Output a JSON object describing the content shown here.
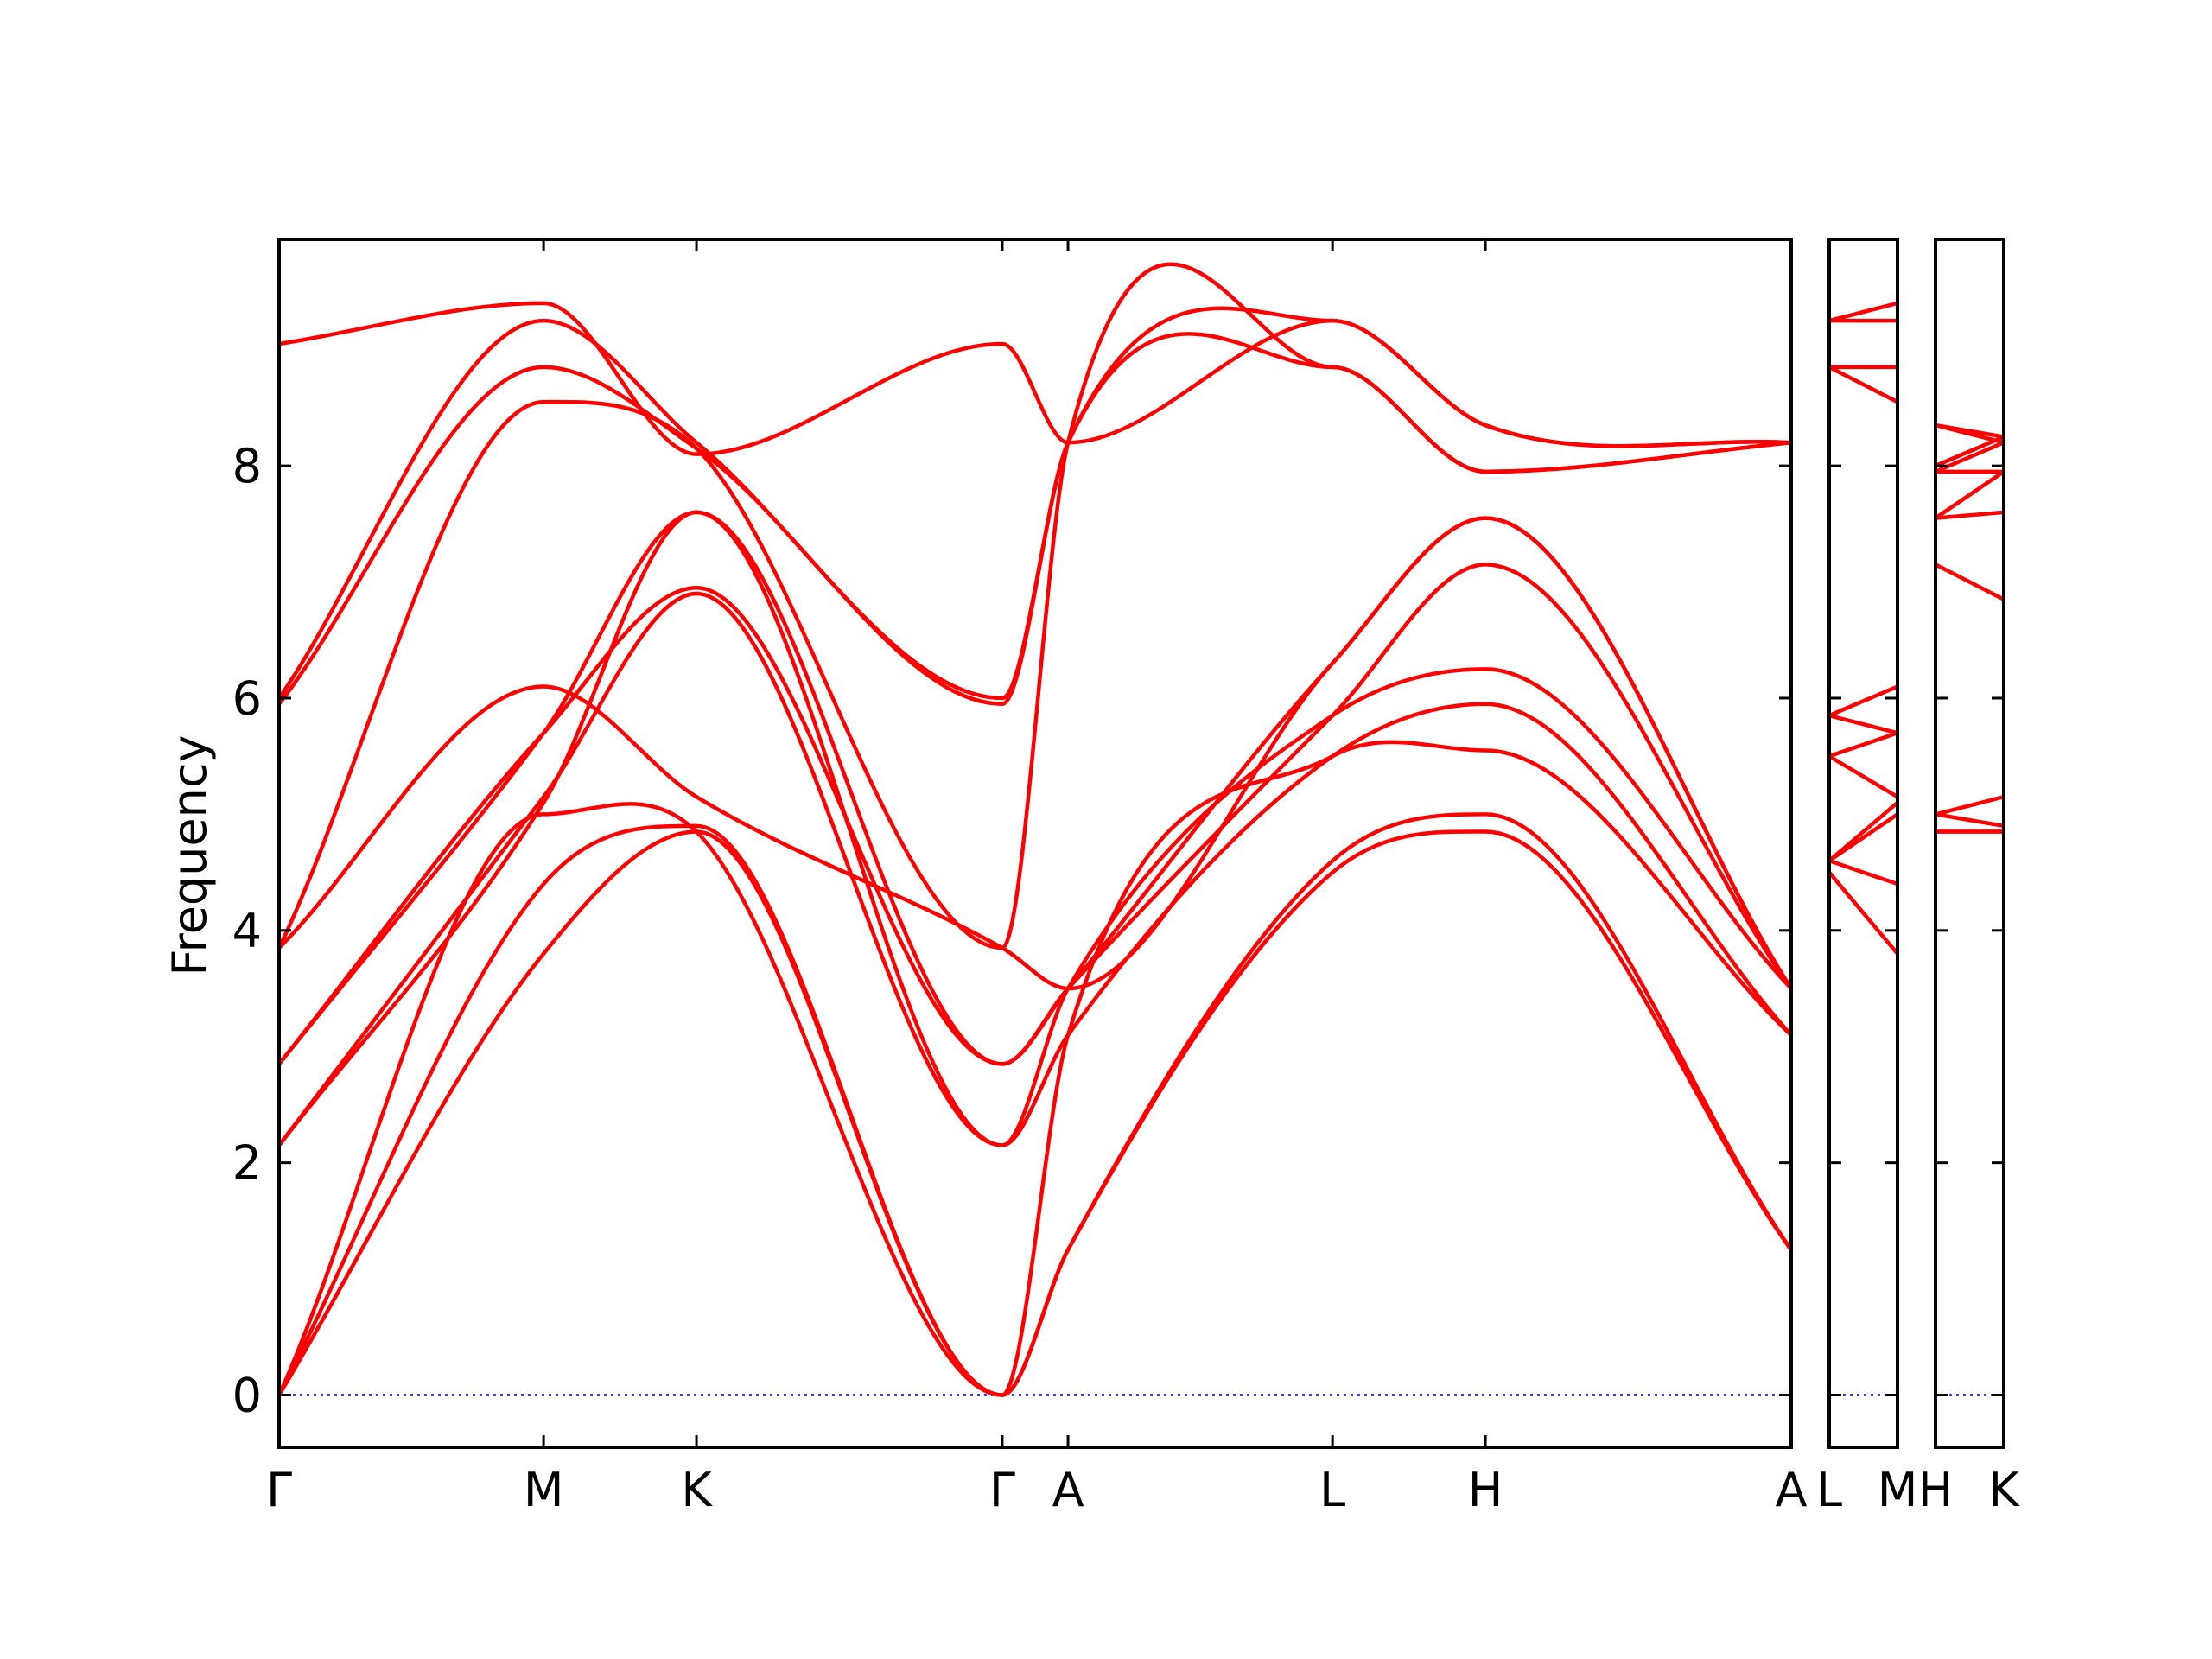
{
  "chart_data": {
    "type": "line",
    "ylabel": "Frequency",
    "ylim": [
      -0.45,
      9.95
    ],
    "yticks": [
      0,
      2,
      4,
      6,
      8
    ],
    "colors": {
      "bands": "#ff0000",
      "zero_line": "#0000cc"
    },
    "panels": [
      {
        "labels": [
          "Γ",
          "M",
          "K",
          "Γ",
          "A",
          "L",
          "H",
          "A"
        ],
        "x": [
          0,
          1.73,
          2.73,
          4.73,
          5.16,
          6.89,
          7.89,
          9.89
        ],
        "bands": [
          [
            0,
            3.8,
            4.85,
            0,
            1.25,
            4.5,
            4.85,
            1.25
          ],
          [
            0,
            4.4,
            4.9,
            0,
            1.25,
            4.6,
            5.0,
            1.25
          ],
          [
            0,
            5.0,
            4.85,
            0,
            3.1,
            5.5,
            5.55,
            3.1
          ],
          [
            2.15,
            5.1,
            7.6,
            2.15,
            3.1,
            5.5,
            5.95,
            3.1
          ],
          [
            2.15,
            5.15,
            6.9,
            2.15,
            3.5,
            5.85,
            6.25,
            3.5
          ],
          [
            2.85,
            5.7,
            6.95,
            2.85,
            3.5,
            5.85,
            7.15,
            3.5
          ],
          [
            2.85,
            5.7,
            7.6,
            2.85,
            3.5,
            6.3,
            7.55,
            3.5
          ],
          [
            3.85,
            6.1,
            5.15,
            3.85,
            3.5,
            6.3,
            7.55,
            3.5
          ],
          [
            3.85,
            8.55,
            8.15,
            3.85,
            8.2,
            8.85,
            7.95,
            8.2
          ],
          [
            5.95,
            8.85,
            8.15,
            5.95,
            8.2,
            8.85,
            7.95,
            8.2
          ],
          [
            6.0,
            9.25,
            8.2,
            6.0,
            8.2,
            9.25,
            8.35,
            8.2
          ],
          [
            9.05,
            9.4,
            8.1,
            9.05,
            8.2,
            9.25,
            8.35,
            8.2
          ]
        ]
      },
      {
        "labels": [
          "L",
          "M"
        ],
        "x": [
          0,
          1
        ],
        "bands": [
          [
            4.5,
            3.8
          ],
          [
            4.6,
            4.4
          ],
          [
            4.6,
            5.0
          ],
          [
            4.6,
            5.1
          ],
          [
            5.5,
            5.15
          ],
          [
            5.5,
            5.7
          ],
          [
            5.85,
            5.7
          ],
          [
            5.85,
            6.1
          ],
          [
            8.85,
            8.55
          ],
          [
            8.85,
            8.85
          ],
          [
            9.25,
            9.25
          ],
          [
            9.25,
            9.4
          ]
        ]
      },
      {
        "labels": [
          "H",
          "K"
        ],
        "x": [
          0,
          1
        ],
        "bands": [
          [
            4.85,
            4.85
          ],
          [
            5.0,
            4.9
          ],
          [
            5.0,
            5.15
          ],
          [
            4.85,
            4.85
          ],
          [
            7.15,
            6.85
          ],
          [
            7.55,
            7.6
          ],
          [
            7.55,
            7.95
          ],
          [
            7.95,
            7.95
          ],
          [
            7.95,
            8.2
          ],
          [
            8.0,
            8.25
          ],
          [
            8.35,
            8.25
          ],
          [
            8.35,
            8.2
          ]
        ]
      }
    ]
  }
}
